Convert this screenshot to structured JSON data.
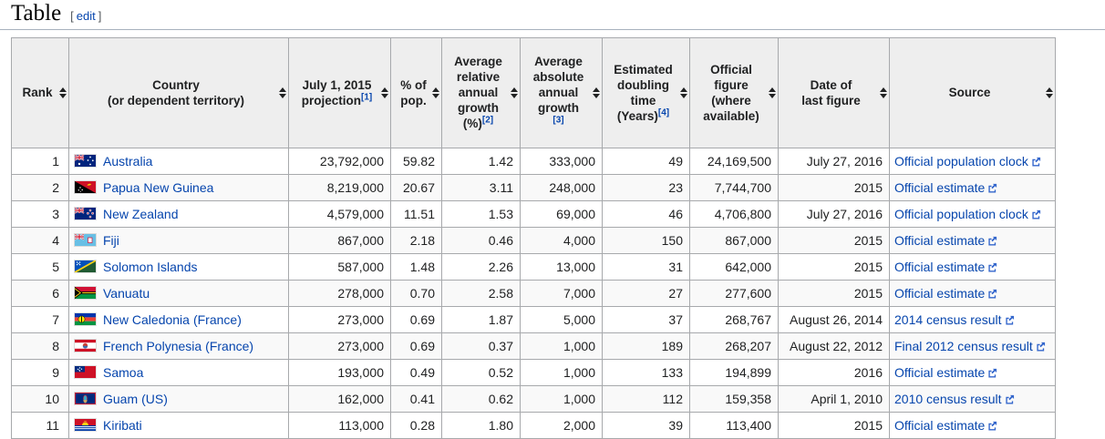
{
  "page": {
    "title": "Table",
    "edit": {
      "open": "[",
      "label": "edit",
      "close": "]"
    }
  },
  "colors": {
    "link": "#0645ad",
    "header_bg": "#eeeeee",
    "border": "#a7a9ac",
    "zebra_row": "#f9f9f9",
    "external_icon": "#3366cc"
  },
  "table": {
    "headers": [
      {
        "key": "rank",
        "lines": [
          "Rank"
        ],
        "ref": null,
        "ref_own_line": false
      },
      {
        "key": "country",
        "lines": [
          "Country",
          "(or dependent territory)"
        ],
        "ref": null,
        "ref_own_line": false
      },
      {
        "key": "projection",
        "lines": [
          "July 1, 2015",
          "projection"
        ],
        "ref": "[1]",
        "ref_own_line": false
      },
      {
        "key": "pct-of-pop",
        "lines": [
          "% of",
          "pop."
        ],
        "ref": null,
        "ref_own_line": false
      },
      {
        "key": "relative-growth",
        "lines": [
          "Average",
          "relative",
          "annual",
          "growth",
          "(%)"
        ],
        "ref": "[2]",
        "ref_own_line": false
      },
      {
        "key": "absolute-growth",
        "lines": [
          "Average",
          "absolute",
          "annual",
          "growth"
        ],
        "ref": "[3]",
        "ref_own_line": true
      },
      {
        "key": "doubling-time",
        "lines": [
          "Estimated",
          "doubling",
          "time",
          "(Years)"
        ],
        "ref": "[4]",
        "ref_own_line": false
      },
      {
        "key": "official-figure",
        "lines": [
          "Official",
          "figure",
          "(where",
          "available)"
        ],
        "ref": null,
        "ref_own_line": false
      },
      {
        "key": "date-of-last-figure",
        "lines": [
          "Date of",
          "last figure"
        ],
        "ref": null,
        "ref_own_line": false
      },
      {
        "key": "source",
        "lines": [
          "Source"
        ],
        "ref": null,
        "ref_own_line": false
      }
    ],
    "rows": [
      {
        "rank": "1",
        "flag": "australia",
        "country": "Australia",
        "suffix": "",
        "projection": "23,792,000",
        "pct": "59.82",
        "rel_growth": "1.42",
        "abs_growth": "333,000",
        "doubling": "49",
        "official": "24,169,500",
        "date": "July 27, 2016",
        "source": "Official population clock"
      },
      {
        "rank": "2",
        "flag": "papua-new-guinea",
        "country": "Papua New Guinea",
        "suffix": "",
        "projection": "8,219,000",
        "pct": "20.67",
        "rel_growth": "3.11",
        "abs_growth": "248,000",
        "doubling": "23",
        "official": "7,744,700",
        "date": "2015",
        "source": "Official estimate"
      },
      {
        "rank": "3",
        "flag": "new-zealand",
        "country": "New Zealand",
        "suffix": "",
        "projection": "4,579,000",
        "pct": "11.51",
        "rel_growth": "1.53",
        "abs_growth": "69,000",
        "doubling": "46",
        "official": "4,706,800",
        "date": "July 27, 2016",
        "source": "Official population clock"
      },
      {
        "rank": "4",
        "flag": "fiji",
        "country": "Fiji",
        "suffix": "",
        "projection": "867,000",
        "pct": "2.18",
        "rel_growth": "0.46",
        "abs_growth": "4,000",
        "doubling": "150",
        "official": "867,000",
        "date": "2015",
        "source": "Official estimate"
      },
      {
        "rank": "5",
        "flag": "solomon-islands",
        "country": "Solomon Islands",
        "suffix": "",
        "projection": "587,000",
        "pct": "1.48",
        "rel_growth": "2.26",
        "abs_growth": "13,000",
        "doubling": "31",
        "official": "642,000",
        "date": "2015",
        "source": "Official estimate"
      },
      {
        "rank": "6",
        "flag": "vanuatu",
        "country": "Vanuatu",
        "suffix": "",
        "projection": "278,000",
        "pct": "0.70",
        "rel_growth": "2.58",
        "abs_growth": "7,000",
        "doubling": "27",
        "official": "277,600",
        "date": "2015",
        "source": "Official estimate"
      },
      {
        "rank": "7",
        "flag": "new-caledonia",
        "country": "New Caledonia",
        "suffix": "(France)",
        "projection": "273,000",
        "pct": "0.69",
        "rel_growth": "1.87",
        "abs_growth": "5,000",
        "doubling": "37",
        "official": "268,767",
        "date": "August 26, 2014",
        "source": "2014 census result"
      },
      {
        "rank": "8",
        "flag": "french-polynesia",
        "country": "French Polynesia",
        "suffix": "(France)",
        "projection": "273,000",
        "pct": "0.69",
        "rel_growth": "0.37",
        "abs_growth": "1,000",
        "doubling": "189",
        "official": "268,207",
        "date": "August 22, 2012",
        "source": "Final 2012 census result"
      },
      {
        "rank": "9",
        "flag": "samoa",
        "country": "Samoa",
        "suffix": "",
        "projection": "193,000",
        "pct": "0.49",
        "rel_growth": "0.52",
        "abs_growth": "1,000",
        "doubling": "133",
        "official": "194,899",
        "date": "2016",
        "source": "Official estimate"
      },
      {
        "rank": "10",
        "flag": "guam",
        "country": "Guam",
        "suffix": "(US)",
        "projection": "162,000",
        "pct": "0.41",
        "rel_growth": "0.62",
        "abs_growth": "1,000",
        "doubling": "112",
        "official": "159,358",
        "date": "April 1, 2010",
        "source": "2010 census result"
      },
      {
        "rank": "11",
        "flag": "kiribati",
        "country": "Kiribati",
        "suffix": "",
        "projection": "113,000",
        "pct": "0.28",
        "rel_growth": "1.80",
        "abs_growth": "2,000",
        "doubling": "39",
        "official": "113,400",
        "date": "2015",
        "source": "Official estimate"
      }
    ]
  }
}
